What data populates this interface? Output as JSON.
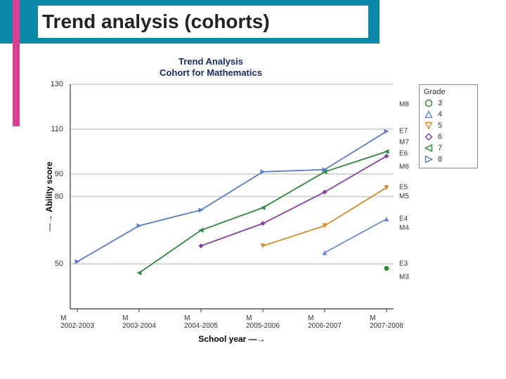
{
  "slide": {
    "title": "Trend analysis (cohorts)",
    "colors": {
      "teal": "#0b88a8",
      "pink": "#d94094"
    }
  },
  "chart": {
    "type": "line",
    "title_line1": "Trend Analysis",
    "title_line2": "Cohort for Mathematics",
    "title_fontsize": 13,
    "title_color": "#1a2a6c",
    "y_label": "Ability score",
    "y_label_prefix": "—→  ",
    "x_label": "School year  —→",
    "x_categories": [
      "2002-2003",
      "2003-2004",
      "2004-2005",
      "2005-2006",
      "2006-2007",
      "2007-2008"
    ],
    "ylim": [
      30,
      130
    ],
    "yticks": [
      50,
      80,
      90,
      110,
      130
    ],
    "grid_color": "#999999",
    "axis_color": "#333333",
    "line_width": 1.8,
    "marker_size": 7,
    "background_color": "#ffffff",
    "right_scale_labels": [
      {
        "text": "M8",
        "y": 121
      },
      {
        "text": "E7",
        "y": 109
      },
      {
        "text": "M7",
        "y": 104
      },
      {
        "text": "E6",
        "y": 99
      },
      {
        "text": "M6",
        "y": 93
      },
      {
        "text": "E5",
        "y": 84
      },
      {
        "text": "M5",
        "y": 80
      },
      {
        "text": "E4",
        "y": 70
      },
      {
        "text": "M4",
        "y": 66
      },
      {
        "text": "E3",
        "y": 50
      },
      {
        "text": "M3",
        "y": 44
      }
    ],
    "series": [
      {
        "grade": "3",
        "color": "#2e8b3d",
        "marker": "circle",
        "data": [
          null,
          null,
          null,
          null,
          null,
          48
        ]
      },
      {
        "grade": "4",
        "color": "#6a8bd8",
        "marker": "triangle-up",
        "data": [
          null,
          null,
          null,
          null,
          55,
          70
        ]
      },
      {
        "grade": "5",
        "color": "#d98b2e",
        "marker": "triangle-down",
        "data": [
          null,
          null,
          null,
          58,
          67,
          84
        ]
      },
      {
        "grade": "6",
        "color": "#8a3ea8",
        "marker": "diamond",
        "data": [
          null,
          null,
          58,
          68,
          82,
          98
        ]
      },
      {
        "grade": "7",
        "color": "#2e8b3d",
        "marker": "triangle-left",
        "data": [
          null,
          46,
          65,
          75,
          91,
          100
        ]
      },
      {
        "grade": "8",
        "color": "#5a7dd0",
        "marker": "triangle-right",
        "data": [
          51,
          67,
          74,
          91,
          92,
          109
        ]
      }
    ],
    "legend": {
      "title": "Grade"
    }
  }
}
